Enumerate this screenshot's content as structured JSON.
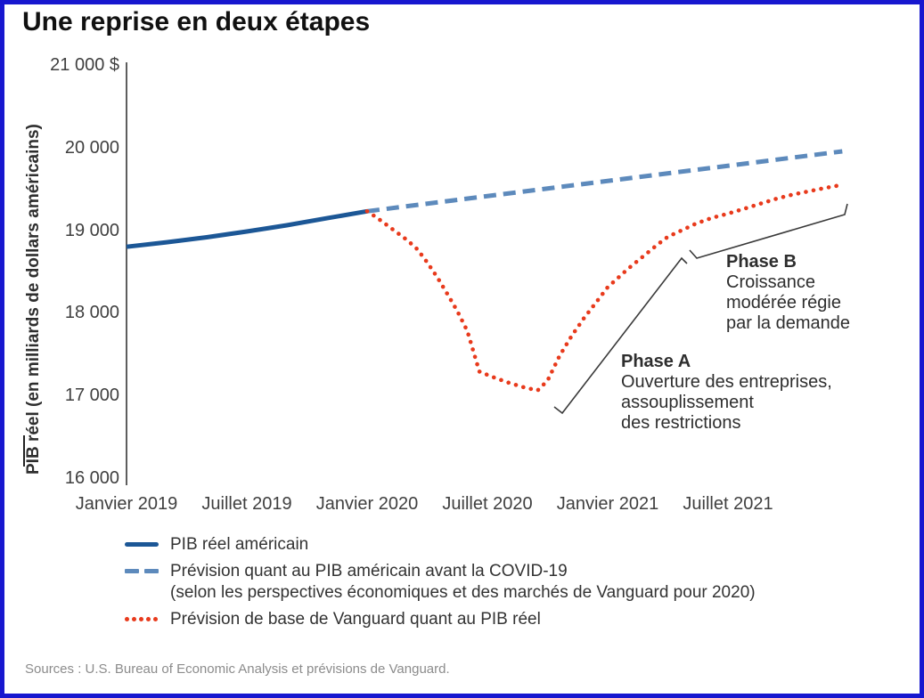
{
  "window": {
    "title": "Une reprise en deux étapes"
  },
  "chart_data": {
    "type": "line",
    "title": "Une reprise en deux étapes",
    "ylabel": "PIB réel (en milliards de dollars américains)",
    "x_unit": "mois depuis Janvier 2019",
    "ylim": [
      16000,
      21000
    ],
    "xlim_months": [
      0,
      35.7
    ],
    "grid": "off",
    "legend_position": "bottom-left",
    "y_ticks": [
      {
        "v": 21000,
        "label": "21 000 $"
      },
      {
        "v": 20000,
        "label": "20 000"
      },
      {
        "v": 19000,
        "label": "19 000"
      },
      {
        "v": 18000,
        "label": "18 000"
      },
      {
        "v": 17000,
        "label": "17 000"
      },
      {
        "v": 16000,
        "label": "16 000"
      }
    ],
    "x_ticks": [
      {
        "m": 0,
        "label": "Janvier 2019"
      },
      {
        "m": 6,
        "label": "Juillet 2019"
      },
      {
        "m": 12,
        "label": "Janvier 2020"
      },
      {
        "m": 18,
        "label": "Juillet 2020"
      },
      {
        "m": 24,
        "label": "Janvier 2021"
      },
      {
        "m": 30,
        "label": "Juillet 2021"
      }
    ],
    "points_note": "points = [mois depuis Janvier 2019, PIB réel en milliards de dollars]",
    "series": [
      {
        "name": "PIB réel américain",
        "style": "solid",
        "color": "#1c5796",
        "points": [
          [
            0,
            18800
          ],
          [
            2,
            18855
          ],
          [
            4,
            18915
          ],
          [
            6,
            18985
          ],
          [
            8,
            19060
          ],
          [
            10,
            19145
          ],
          [
            12,
            19230
          ]
        ]
      },
      {
        "name": "Prévision quant au PIB américain avant la COVID-19",
        "style": "dashed",
        "color": "#5d8abc",
        "points": [
          [
            12,
            19230
          ],
          [
            35.7,
            19955
          ]
        ]
      },
      {
        "name": "Prévision de base de Vanguard quant au PIB réel",
        "style": "dotted",
        "color": "#e83a1c",
        "points": [
          [
            12,
            19230
          ],
          [
            12.5,
            19150
          ],
          [
            13,
            19060
          ],
          [
            13.5,
            18970
          ],
          [
            14,
            18880
          ],
          [
            14.5,
            18770
          ],
          [
            15,
            18610
          ],
          [
            15.5,
            18430
          ],
          [
            16,
            18230
          ],
          [
            16.5,
            18020
          ],
          [
            17,
            17780
          ],
          [
            17.6,
            17290
          ],
          [
            18.2,
            17230
          ],
          [
            19,
            17160
          ],
          [
            19.8,
            17100
          ],
          [
            20.5,
            17060
          ],
          [
            21,
            17180
          ],
          [
            21.6,
            17480
          ],
          [
            22.2,
            17720
          ],
          [
            22.8,
            17930
          ],
          [
            23.4,
            18120
          ],
          [
            24,
            18310
          ],
          [
            24.5,
            18420
          ],
          [
            25,
            18530
          ],
          [
            25.5,
            18630
          ],
          [
            26,
            18730
          ],
          [
            26.5,
            18830
          ],
          [
            27,
            18920
          ],
          [
            27.7,
            19000
          ],
          [
            28.4,
            19080
          ],
          [
            29.2,
            19150
          ],
          [
            30,
            19200
          ],
          [
            30.8,
            19260
          ],
          [
            31.6,
            19320
          ],
          [
            32.4,
            19380
          ],
          [
            33.2,
            19430
          ],
          [
            34,
            19470
          ],
          [
            34.8,
            19510
          ],
          [
            35.7,
            19550
          ]
        ]
      }
    ],
    "annotations": [
      {
        "title": "Phase A",
        "lines": [
          "Ouverture des entreprises,",
          "assouplissement",
          "des restrictions"
        ]
      },
      {
        "title": "Phase B",
        "lines": [
          "Croissance",
          "modérée régie",
          "par la demande"
        ]
      }
    ]
  },
  "legend": {
    "items": [
      {
        "label": "PIB réel américain",
        "label2": ""
      },
      {
        "label": "Prévision quant au PIB américain avant la COVID-19",
        "label2": "(selon les perspectives économiques et des marchés de Vanguard pour 2020)"
      },
      {
        "label": "Prévision de base de Vanguard quant au PIB réel",
        "label2": ""
      }
    ]
  },
  "source": "Sources : U.S. Bureau of Economic Analysis et prévisions de Vanguard.",
  "colors": {
    "frame_border": "#1717cf",
    "axis": "#5e5e5e",
    "tick_text": "#3f3f3f",
    "text": "#2e2e2e",
    "muted_text": "#8c8c8c",
    "annotation_line": "#3a3a3a"
  }
}
